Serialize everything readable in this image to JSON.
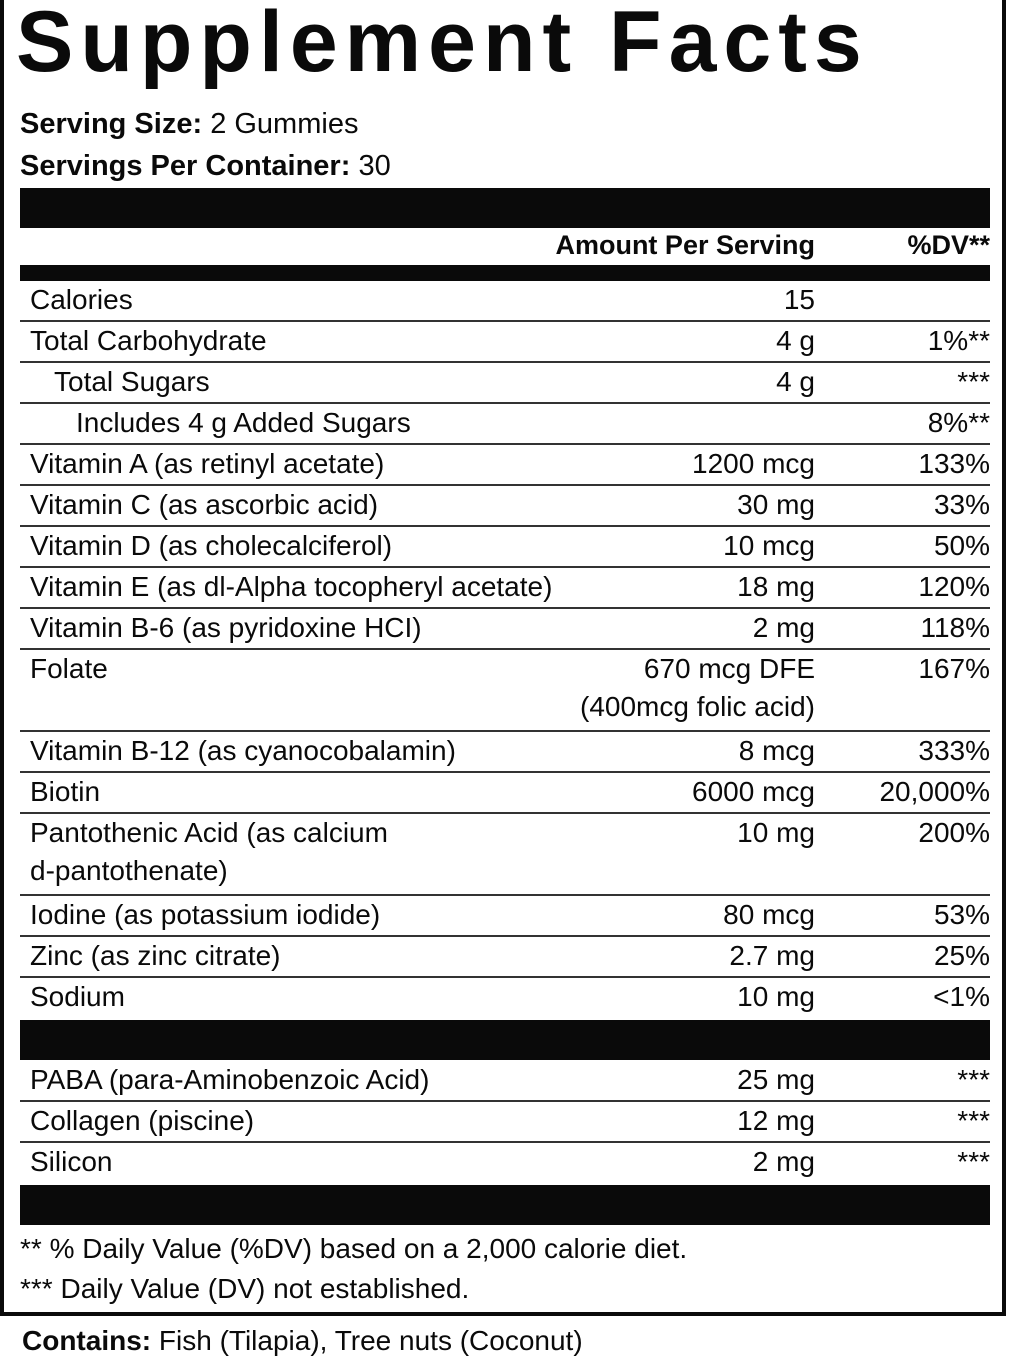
{
  "title": "Supplement Facts",
  "serving_size": {
    "label": "Serving Size:",
    "value": "2 Gummies"
  },
  "servings_per_container": {
    "label": "Servings Per Container:",
    "value": "30"
  },
  "header": {
    "amount": "Amount Per Serving",
    "dv": "%DV**"
  },
  "nutrients": [
    {
      "name": "Calories",
      "amount": "15",
      "dv": ""
    },
    {
      "name": "Total Carbohydrate",
      "amount": "4 g",
      "dv": "1%**"
    },
    {
      "name": "Total Sugars",
      "amount": "4 g",
      "dv": "***"
    },
    {
      "name": "Includes 4 g Added Sugars",
      "amount": "",
      "dv": "8%**"
    },
    {
      "name": "Vitamin A (as retinyl acetate)",
      "amount": "1200 mcg",
      "dv": "133%"
    },
    {
      "name": "Vitamin C (as ascorbic acid)",
      "amount": "30 mg",
      "dv": "33%"
    },
    {
      "name": "Vitamin D (as cholecalciferol)",
      "amount": "10 mcg",
      "dv": "50%"
    },
    {
      "name": "Vitamin E (as dl-Alpha tocopheryl acetate)",
      "amount": "18 mg",
      "dv": "120%"
    },
    {
      "name": "Vitamin B-6 (as pyridoxine HCI)",
      "amount": "2 mg",
      "dv": "118%"
    },
    {
      "name": "Folate",
      "amount": "670 mcg DFE",
      "amount2": "(400mcg folic acid)",
      "dv": "167%"
    },
    {
      "name": "Vitamin B-12 (as cyanocobalamin)",
      "amount": "8 mcg",
      "dv": "333%"
    },
    {
      "name": "Biotin",
      "amount": "6000 mcg",
      "dv": "20,000%"
    },
    {
      "name": "Pantothenic Acid (as calcium",
      "name2": "d-pantothenate)",
      "amount": "10 mg",
      "dv": "200%"
    },
    {
      "name": "Iodine (as potassium iodide)",
      "amount": "80 mcg",
      "dv": "53%"
    },
    {
      "name": "Zinc (as zinc citrate)",
      "amount": "2.7 mg",
      "dv": "25%"
    },
    {
      "name": "Sodium",
      "amount": "10 mg",
      "dv": "<1%"
    }
  ],
  "other_ingredients": [
    {
      "name": "PABA (para-Aminobenzoic Acid)",
      "amount": "25 mg",
      "dv": "***"
    },
    {
      "name": "Collagen (piscine)",
      "amount": "12 mg",
      "dv": "***"
    },
    {
      "name": "Silicon",
      "amount": "2 mg",
      "dv": "***"
    }
  ],
  "footnotes": [
    "** % Daily Value (%DV) based on a 2,000 calorie diet.",
    "*** Daily Value (DV) not established."
  ],
  "contains": {
    "label": "Contains:",
    "value": "Fish (Tilapia), Tree nuts (Coconut)"
  }
}
